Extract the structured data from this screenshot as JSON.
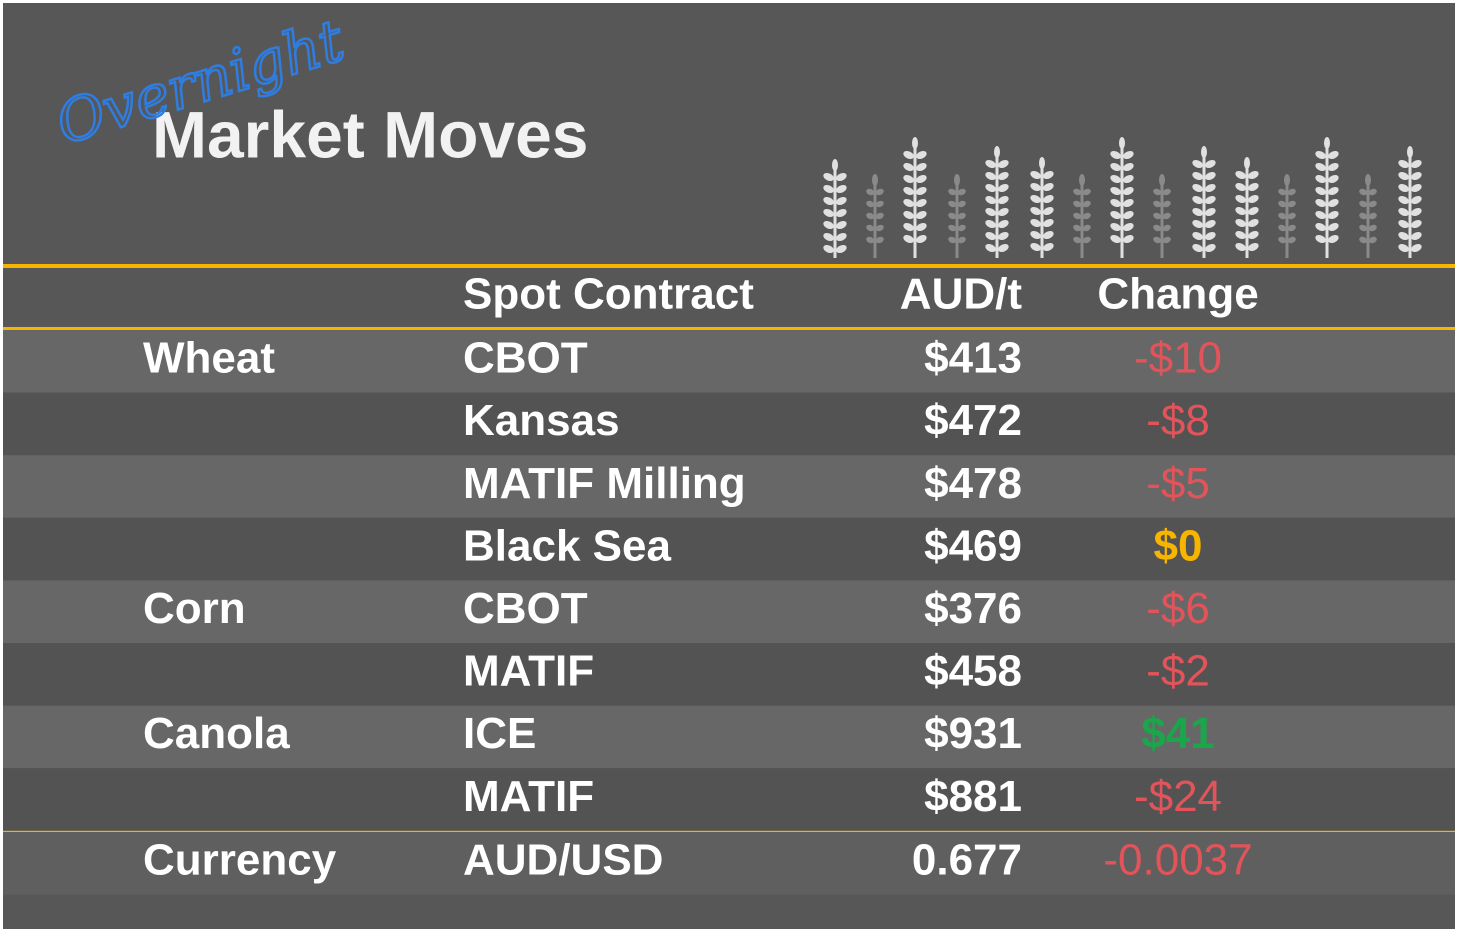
{
  "header": {
    "script": "Overnight",
    "title": "Market Moves"
  },
  "table": {
    "columns": [
      "Spot Contract",
      "AUD/t",
      "Change"
    ],
    "rows": [
      {
        "commodity": "Wheat",
        "contract": "CBOT",
        "price": "$413",
        "change": "-$10",
        "change_color": "#e2545a"
      },
      {
        "contract": "Kansas",
        "price": "$472",
        "change": "-$8",
        "change_color": "#e2545a"
      },
      {
        "contract": "MATIF Milling",
        "price": "$478",
        "change": "-$5",
        "change_color": "#e2545a"
      },
      {
        "contract": "Black Sea",
        "price": "$469",
        "change": "$0",
        "change_color": "#f7b500",
        "change_bold": true
      },
      {
        "commodity": "Corn",
        "contract": "CBOT",
        "price": "$376",
        "change": "-$6",
        "change_color": "#e2545a"
      },
      {
        "contract": "MATIF",
        "price": "$458",
        "change": "-$2",
        "change_color": "#e2545a"
      },
      {
        "commodity": "Canola",
        "contract": "ICE",
        "price": "$931",
        "change": "$41",
        "change_color": "#1aa64a",
        "change_bold": true
      },
      {
        "contract": "MATIF",
        "price": "$881",
        "change": "-$24",
        "change_color": "#e2545a"
      }
    ],
    "footer_row": {
      "commodity": "Currency",
      "contract": "AUD/USD",
      "price": "0.677",
      "change": "-0.0037",
      "change_color": "#e2545a"
    }
  }
}
